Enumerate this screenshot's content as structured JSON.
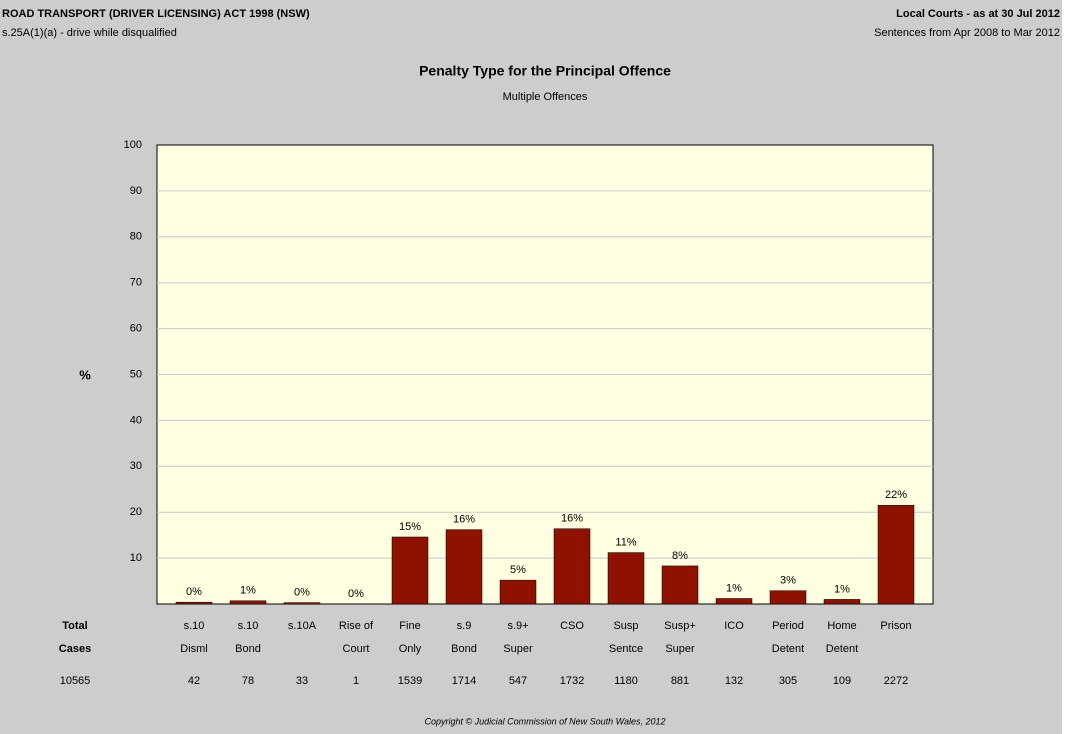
{
  "header": {
    "left_title": "ROAD TRANSPORT (DRIVER LICENSING) ACT 1998 (NSW)",
    "left_subtitle": "s.25A(1)(a) - drive while disqualified",
    "right_title": "Local Courts - as at 30 Jul 2012",
    "right_subtitle": "Sentences from Apr 2008 to Mar 2012"
  },
  "chart_data": {
    "type": "bar",
    "title": "Penalty Type for the Principal Offence",
    "subtitle": "Multiple Offences",
    "y_label": "%",
    "categories": [
      [
        "s.10",
        "Disml"
      ],
      [
        "s.10",
        "Bond"
      ],
      [
        "s.10A"
      ],
      [
        "Rise of",
        "Court"
      ],
      [
        "Fine",
        "Only"
      ],
      [
        "s.9",
        "Bond"
      ],
      [
        "s.9+",
        "Super"
      ],
      [
        "CSO"
      ],
      [
        "Susp",
        "Sentce"
      ],
      [
        "Susp+",
        "Super"
      ],
      [
        "ICO"
      ],
      [
        "Period",
        "Detent"
      ],
      [
        "Home",
        "Detent"
      ],
      [
        "Prison"
      ]
    ],
    "values": [
      0.4,
      0.7,
      0.3,
      0,
      14.6,
      16.2,
      5.2,
      16.4,
      11.2,
      8.3,
      1.2,
      2.9,
      1,
      21.5
    ],
    "value_labels": [
      "0%",
      "1%",
      "0%",
      "0%",
      "15%",
      "16%",
      "5%",
      "16%",
      "11%",
      "8%",
      "1%",
      "3%",
      "1%",
      "22%"
    ],
    "color": "#8f1200",
    "ylim": [
      0,
      100
    ],
    "yticks": [
      10,
      20,
      30,
      40,
      50,
      60,
      70,
      80,
      90,
      100
    ],
    "grid": true,
    "cases_label": [
      "Total",
      "Cases"
    ],
    "total_cases": 10565,
    "cases": [
      42,
      78,
      33,
      1,
      1539,
      1714,
      547,
      1732,
      1180,
      881,
      132,
      305,
      109,
      2272
    ]
  },
  "footer": {
    "copyright": "Copyright © Judicial Commission of New South Wales, 2012"
  }
}
